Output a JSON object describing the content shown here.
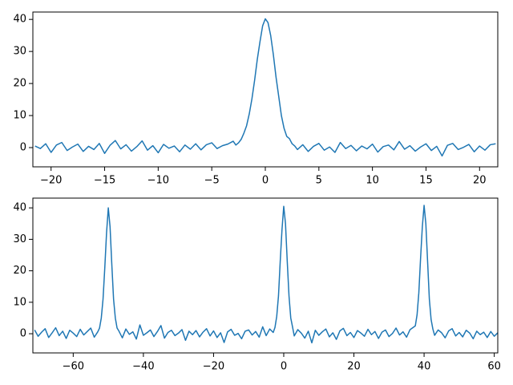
{
  "chart_data": [
    {
      "type": "line",
      "color": "#1f77b4",
      "x": [
        -21.5,
        -21,
        -20.5,
        -20,
        -19.5,
        -19,
        -18.5,
        -18,
        -17.5,
        -17,
        -16.5,
        -16,
        -15.5,
        -15,
        -14.5,
        -14,
        -13.5,
        -13,
        -12.5,
        -12,
        -11.5,
        -11,
        -10.5,
        -10,
        -9.5,
        -9,
        -8.5,
        -8,
        -7.5,
        -7,
        -6.5,
        -6,
        -5.5,
        -5,
        -4.5,
        -4,
        -3.5,
        -3,
        -2.75,
        -2.5,
        -2.25,
        -2,
        -1.75,
        -1.5,
        -1.25,
        -1,
        -0.75,
        -0.5,
        -0.25,
        0,
        0.25,
        0.5,
        0.75,
        1,
        1.25,
        1.5,
        1.75,
        2,
        2.25,
        2.5,
        2.75,
        3,
        3.5,
        4,
        4.5,
        5,
        5.5,
        6,
        6.5,
        7,
        7.5,
        8,
        8.5,
        9,
        9.5,
        10,
        10.5,
        11,
        11.5,
        12,
        12.5,
        13,
        13.5,
        14,
        14.5,
        15,
        15.5,
        16,
        16.5,
        17,
        17.5,
        18,
        18.5,
        19,
        19.5,
        20,
        20.5,
        21,
        21.5
      ],
      "values": [
        0.5,
        -0.3,
        1.2,
        -1.5,
        0.8,
        1.6,
        -0.9,
        0.2,
        1.1,
        -1.2,
        0.4,
        -0.6,
        1.3,
        -1.8,
        0.7,
        2.2,
        -0.4,
        0.9,
        -1.1,
        0.3,
        2.1,
        -0.8,
        0.6,
        -1.6,
        1.0,
        -0.2,
        0.5,
        -1.3,
        0.8,
        -0.5,
        1.2,
        -0.7,
        0.9,
        1.5,
        -0.3,
        0.6,
        1.1,
        2.0,
        0.8,
        1.5,
        2.6,
        4.5,
        6.8,
        10.5,
        15.2,
        21,
        27.5,
        33,
        38,
        40.2,
        39,
        35,
        29,
        22,
        16,
        10,
        6,
        3.5,
        2.8,
        1.2,
        0.5,
        -0.6,
        0.9,
        -1.2,
        0.4,
        1.3,
        -0.8,
        0.2,
        -1.5,
        1.6,
        -0.3,
        0.7,
        -1.0,
        0.5,
        -0.4,
        1.1,
        -1.4,
        0.3,
        0.8,
        -0.7,
        1.9,
        -0.5,
        0.6,
        -1.1,
        0.2,
        1.2,
        -0.9,
        0.4,
        -2.6,
        0.7,
        1.3,
        -0.6,
        0.1,
        1.0,
        -1.3,
        0.5,
        -0.8,
        0.9,
        1.2
      ],
      "xlim": [
        -21.7,
        21.7
      ],
      "xticks": [
        {
          "value": -20,
          "label": "−20"
        },
        {
          "value": -15,
          "label": "−15"
        },
        {
          "value": -10,
          "label": "−10"
        },
        {
          "value": -5,
          "label": "−5"
        },
        0,
        5,
        10,
        15,
        20
      ],
      "ylim": [
        -6,
        42.3
      ],
      "yticks": [
        0,
        10,
        20,
        30,
        40
      ]
    },
    {
      "type": "line",
      "color": "#1f77b4",
      "x": [
        -71,
        -70,
        -69,
        -68,
        -67,
        -66,
        -65,
        -64,
        -63,
        -62,
        -61,
        -60,
        -59,
        -58,
        -57,
        -56,
        -55,
        -54,
        -53,
        -52.5,
        -52,
        -51.5,
        -51,
        -50.5,
        -50,
        -49.5,
        -49,
        -48.5,
        -48,
        -47.5,
        -47,
        -46,
        -45,
        -44,
        -43,
        -42,
        -41,
        -40,
        -39,
        -38,
        -37,
        -36,
        -35,
        -34,
        -33,
        -32,
        -31,
        -30,
        -29,
        -28,
        -27,
        -26,
        -25,
        -24,
        -23,
        -22,
        -21,
        -20,
        -19,
        -18,
        -17,
        -16,
        -15,
        -14,
        -13,
        -12,
        -11,
        -10,
        -9,
        -8,
        -7,
        -6,
        -5,
        -4,
        -3,
        -2.5,
        -2,
        -1.5,
        -1,
        -0.5,
        0,
        0.5,
        1,
        1.5,
        2,
        2.5,
        3,
        4,
        5,
        6,
        7,
        8,
        9,
        10,
        11,
        12,
        13,
        14,
        15,
        16,
        17,
        18,
        19,
        20,
        21,
        22,
        23,
        24,
        25,
        26,
        27,
        28,
        29,
        30,
        31,
        32,
        33,
        34,
        35,
        36,
        37,
        37.5,
        38,
        38.5,
        39,
        39.5,
        40,
        40.5,
        41,
        41.5,
        42,
        42.5,
        43,
        44,
        45,
        46,
        47,
        48,
        49,
        50,
        51,
        52,
        53,
        54,
        55,
        56,
        57,
        58,
        59,
        60,
        61
      ],
      "values": [
        1.2,
        -0.8,
        0.5,
        1.6,
        -1.2,
        0.3,
        1.9,
        -0.6,
        0.8,
        -1.5,
        1.1,
        0.2,
        -0.9,
        1.4,
        -0.4,
        0.7,
        1.8,
        -1.1,
        0.6,
        1.8,
        5,
        11,
        21,
        32,
        40,
        34,
        22,
        11,
        5,
        1.8,
        0.9,
        -1.3,
        1.5,
        -0.2,
        0.6,
        -1.7,
        2.8,
        -0.5,
        0.3,
        1.2,
        -0.9,
        0.7,
        2.6,
        -1.4,
        0.4,
        1.1,
        -0.6,
        0.2,
        1.3,
        -2.1,
        0.8,
        -0.3,
        1.0,
        -1.0,
        0.5,
        1.6,
        -0.7,
        0.9,
        -1.2,
        0.3,
        -2.8,
        0.6,
        1.4,
        -0.5,
        0.1,
        -1.6,
        0.8,
        1.2,
        -0.4,
        0.7,
        -1.1,
        2.2,
        -0.6,
        1.5,
        0.4,
        2.0,
        5.5,
        12,
        23,
        33,
        40.5,
        35,
        23,
        12,
        5,
        2.2,
        -0.7,
        1.3,
        0.2,
        -1.4,
        0.8,
        -2.9,
        1.1,
        -0.5,
        0.6,
        1.5,
        -1.0,
        0.3,
        -1.8,
        0.9,
        1.7,
        -0.6,
        0.4,
        -1.2,
        1.0,
        0.2,
        -0.8,
        1.4,
        -0.3,
        0.7,
        -1.5,
        0.5,
        1.2,
        -0.9,
        0.1,
        1.8,
        -0.4,
        0.6,
        -1.1,
        1.3,
        2.1,
        2.5,
        6,
        13,
        24,
        34,
        40.8,
        35,
        23,
        11,
        4.5,
        1.5,
        -0.5,
        1.2,
        0.3,
        -1.3,
        0.9,
        1.6,
        -0.7,
        0.4,
        -1.0,
        1.1,
        0.2,
        -1.6,
        0.8,
        -0.3,
        0.5,
        -1.2,
        0.7,
        -0.8,
        0.3
      ],
      "xlim": [
        -71.5,
        61
      ],
      "xticks": [
        {
          "value": -60,
          "label": "−60"
        },
        {
          "value": -40,
          "label": "−40"
        },
        {
          "value": -20,
          "label": "−20"
        },
        0,
        20,
        40,
        60
      ],
      "ylim": [
        -6.1,
        43.1
      ],
      "yticks": [
        0,
        10,
        20,
        30,
        40
      ]
    }
  ]
}
